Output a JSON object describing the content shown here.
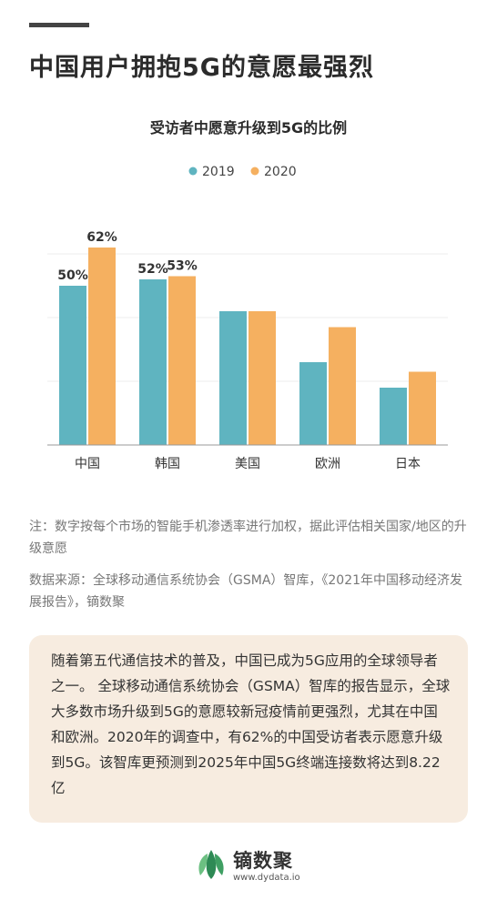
{
  "headline": "中国用户拥抱5G的意愿最强烈",
  "colors": {
    "s2019": "#5fb4c0",
    "s2020": "#f5b060"
  },
  "chart_data": {
    "type": "bar",
    "title": "受访者中愿意升级到5G的比例",
    "categories": [
      "中国",
      "韩国",
      "美国",
      "欧洲",
      "日本"
    ],
    "series": [
      {
        "name": "2019",
        "values": [
          50,
          52,
          42,
          26,
          18
        ],
        "labels": [
          "50%",
          "52%",
          "",
          "",
          ""
        ]
      },
      {
        "name": "2020",
        "values": [
          62,
          53,
          42,
          37,
          23
        ],
        "labels": [
          "62%",
          "53%",
          "",
          "",
          ""
        ]
      }
    ],
    "ylim": [
      0,
      70
    ],
    "legend_position": "top-center",
    "grid": true
  },
  "note": "注：数字按每个市场的智能手机渗透率进行加权，据此评估相关国家/地区的升级意愿",
  "source": "数据来源：全球移动通信系统协会（GSMA）智库，《2021年中国移动经济发展报告》，镝数聚",
  "summary": "随着第五代通信技术的普及，中国已成为5G应用的全球领导者之一。 全球移动通信系统协会（GSMA）智库的报告显示，全球大多数市场升级到5G的意愿较新冠疫情前更强烈，尤其在中国和欧洲。2020年的调查中，有62%的中国受访者表示愿意升级到5G。该智库更预测到2025年中国5G终端连接数将达到8.22亿",
  "logo": {
    "name": "镝数聚",
    "url": "www.dydata.io"
  }
}
